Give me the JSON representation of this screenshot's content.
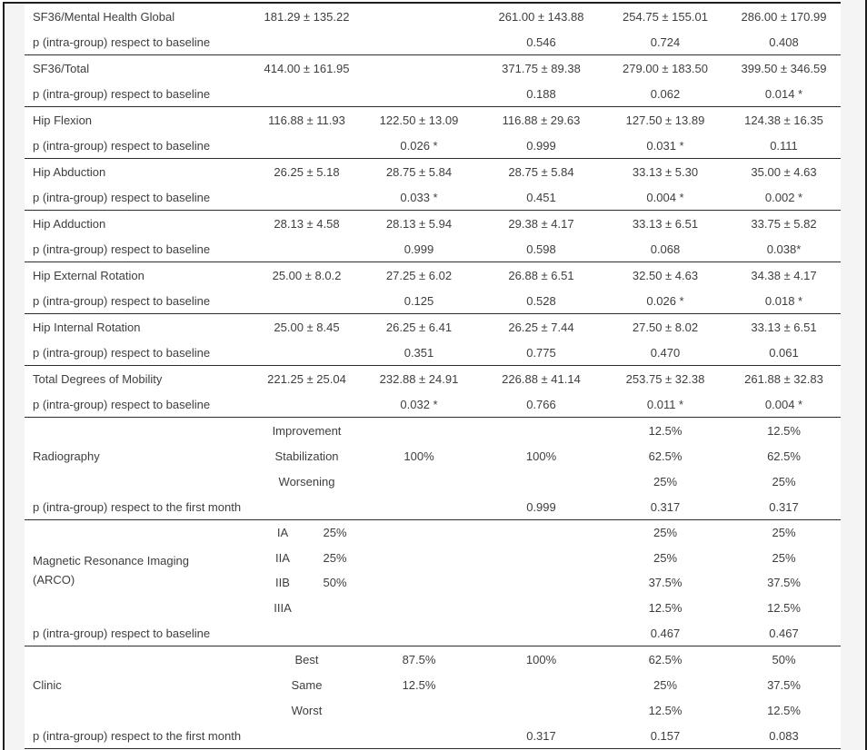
{
  "page": {
    "bg": "#ffffff",
    "gutter_color": "#f4f4f5",
    "frame_line_color": "#1e1e1e",
    "divider_color": "#2d2d2d",
    "text_color": "#3e3e3e"
  },
  "table": {
    "sections": [
      {
        "label": "SF36/Mental Health Global",
        "type": "measure",
        "rows": [
          {
            "sub": "",
            "cells": [
              "181.29 ± 135.22",
              "",
              "261.00 ± 143.88",
              "254.75 ± 155.01",
              "286.00 ± 170.99"
            ]
          }
        ],
        "p_label": "p (intra-group) respect to baseline",
        "p_cells": [
          "",
          "",
          "0.546",
          "0.724",
          "0.408"
        ]
      },
      {
        "label": "SF36/Total",
        "type": "measure",
        "rows": [
          {
            "sub": "",
            "cells": [
              "414.00 ± 161.95",
              "",
              "371.75 ± 89.38",
              "279.00 ± 183.50",
              "399.50 ± 346.59"
            ]
          }
        ],
        "p_label": "p (intra-group) respect to baseline",
        "p_cells": [
          "",
          "",
          "0.188",
          "0.062",
          "0.014 *"
        ]
      },
      {
        "label": "Hip Flexion",
        "type": "measure",
        "rows": [
          {
            "sub": "",
            "cells": [
              "116.88 ± 11.93",
              "122.50 ± 13.09",
              "116.88 ± 29.63",
              "127.50 ± 13.89",
              "124.38 ± 16.35"
            ]
          }
        ],
        "p_label": "p (intra-group) respect to baseline",
        "p_cells": [
          "",
          "0.026 *",
          "0.999",
          "0.031 *",
          "0.111"
        ]
      },
      {
        "label": "Hip Abduction",
        "type": "measure",
        "rows": [
          {
            "sub": "",
            "cells": [
              "26.25 ± 5.18",
              "28.75 ± 5.84",
              "28.75 ± 5.84",
              "33.13 ± 5.30",
              "35.00 ± 4.63"
            ]
          }
        ],
        "p_label": "p (intra-group) respect to baseline",
        "p_cells": [
          "",
          "0.033 *",
          "0.451",
          "0.004 *",
          "0.002 *"
        ]
      },
      {
        "label": "Hip Adduction",
        "type": "measure",
        "rows": [
          {
            "sub": "",
            "cells": [
              "28.13 ± 4.58",
              "28.13 ± 5.94",
              "29.38 ± 4.17",
              "33.13 ± 6.51",
              "33.75 ± 5.82"
            ]
          }
        ],
        "p_label": "p (intra-group) respect to baseline",
        "p_cells": [
          "",
          "0.999",
          "0.598",
          "0.068",
          "0.038*"
        ]
      },
      {
        "label": "Hip External Rotation",
        "type": "measure",
        "rows": [
          {
            "sub": "",
            "cells": [
              "25.00 ± 8.0.2",
              "27.25 ± 6.02",
              "26.88 ± 6.51",
              "32.50 ± 4.63",
              "34.38 ± 4.17"
            ]
          }
        ],
        "p_label": "p (intra-group) respect to baseline",
        "p_cells": [
          "",
          "0.125",
          "0.528",
          "0.026 *",
          "0.018 *"
        ]
      },
      {
        "label": "Hip Internal Rotation",
        "type": "measure",
        "rows": [
          {
            "sub": "",
            "cells": [
              "25.00 ± 8.45",
              "26.25 ± 6.41",
              "26.25 ± 7.44",
              "27.50 ± 8.02",
              "33.13 ± 6.51"
            ]
          }
        ],
        "p_label": "p (intra-group) respect to baseline",
        "p_cells": [
          "",
          "0.351",
          "0.775",
          "0.470",
          "0.061"
        ]
      },
      {
        "label": "Total Degrees of Mobility",
        "type": "measure",
        "rows": [
          {
            "sub": "",
            "cells": [
              "221.25 ± 25.04",
              "232.88 ± 24.91",
              "226.88 ± 41.14",
              "253.75 ± 32.38",
              "261.88 ± 32.83"
            ]
          }
        ],
        "p_label": "p (intra-group) respect to baseline",
        "p_cells": [
          "",
          "0.032 *",
          "0.766",
          "0.011 *",
          "0.004 *"
        ]
      },
      {
        "label": "Radiography",
        "type": "cat",
        "rows": [
          {
            "sub": "Improvement",
            "cells": [
              "",
              "",
              "",
              "12.5%",
              "12.5%"
            ]
          },
          {
            "sub": "Stabilization",
            "cells": [
              "",
              "100%",
              "100%",
              "62.5%",
              "62.5%"
            ]
          },
          {
            "sub": "Worsening",
            "cells": [
              "",
              "",
              "",
              "25%",
              "25%"
            ]
          }
        ],
        "p_label": "p (intra-group) respect to the first month",
        "p_cells": [
          "",
          "",
          "0.999",
          "0.317",
          "0.317"
        ]
      },
      {
        "label": "Magnetic Resonance Imaging",
        "label2": "(ARCO)",
        "type": "grade",
        "rows": [
          {
            "sub": "IA",
            "cells": [
              "25%",
              "",
              "",
              "25%",
              "25%"
            ]
          },
          {
            "sub": "IIA",
            "cells": [
              "25%",
              "",
              "",
              "25%",
              "25%"
            ]
          },
          {
            "sub": "IIB",
            "cells": [
              "50%",
              "",
              "",
              "37.5%",
              "37.5%"
            ]
          },
          {
            "sub": "IIIA",
            "cells": [
              "",
              "",
              "",
              "12.5%",
              "12.5%"
            ]
          }
        ],
        "p_label": "p (intra-group) respect to baseline",
        "p_cells": [
          "",
          "",
          "",
          "0.467",
          "0.467"
        ]
      },
      {
        "label": "Clinic",
        "type": "cat",
        "rows": [
          {
            "sub": "Best",
            "cells": [
              "",
              "87.5%",
              "100%",
              "62.5%",
              "50%"
            ]
          },
          {
            "sub": "Same",
            "cells": [
              "",
              "12.5%",
              "",
              "25%",
              "37.5%"
            ]
          },
          {
            "sub": "Worst",
            "cells": [
              "",
              "",
              "",
              "12.5%",
              "12.5%"
            ]
          }
        ],
        "p_label": "p (intra-group) respect to the first month",
        "p_cells": [
          "",
          "",
          "0.317",
          "0.157",
          "0.083"
        ]
      }
    ]
  }
}
